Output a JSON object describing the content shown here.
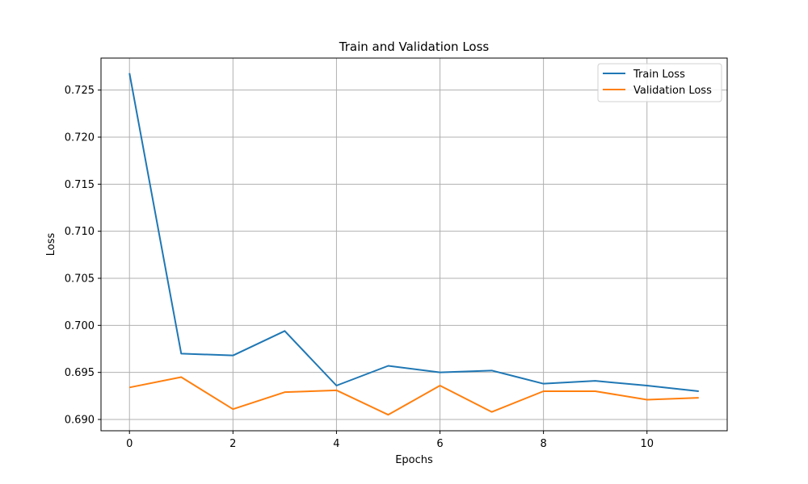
{
  "chart_data": {
    "type": "line",
    "title": "Train and Validation Loss",
    "xlabel": "Epochs",
    "ylabel": "Loss",
    "x": [
      0,
      1,
      2,
      3,
      4,
      5,
      6,
      7,
      8,
      9,
      10,
      11
    ],
    "xlim": [
      -0.55,
      11.55
    ],
    "ylim": [
      0.6888,
      0.7284
    ],
    "xticks": [
      0,
      2,
      4,
      6,
      8,
      10
    ],
    "yticks": [
      0.69,
      0.695,
      0.7,
      0.705,
      0.71,
      0.715,
      0.72,
      0.725
    ],
    "xtick_labels": [
      "0",
      "2",
      "4",
      "6",
      "8",
      "10"
    ],
    "ytick_labels": [
      "0.690",
      "0.695",
      "0.700",
      "0.705",
      "0.710",
      "0.715",
      "0.720",
      "0.725"
    ],
    "grid": true,
    "legend_position": "top-right",
    "series": [
      {
        "name": "Train Loss",
        "color": "#1f77b4",
        "values": [
          0.7268,
          0.697,
          0.6968,
          0.6994,
          0.6936,
          0.6957,
          0.695,
          0.6952,
          0.6938,
          0.6941,
          0.6936,
          0.693
        ]
      },
      {
        "name": "Validation Loss",
        "color": "#ff7f0e",
        "values": [
          0.6934,
          0.6945,
          0.6911,
          0.6929,
          0.6931,
          0.6905,
          0.6936,
          0.6908,
          0.693,
          0.693,
          0.6921,
          0.6923
        ]
      }
    ]
  }
}
